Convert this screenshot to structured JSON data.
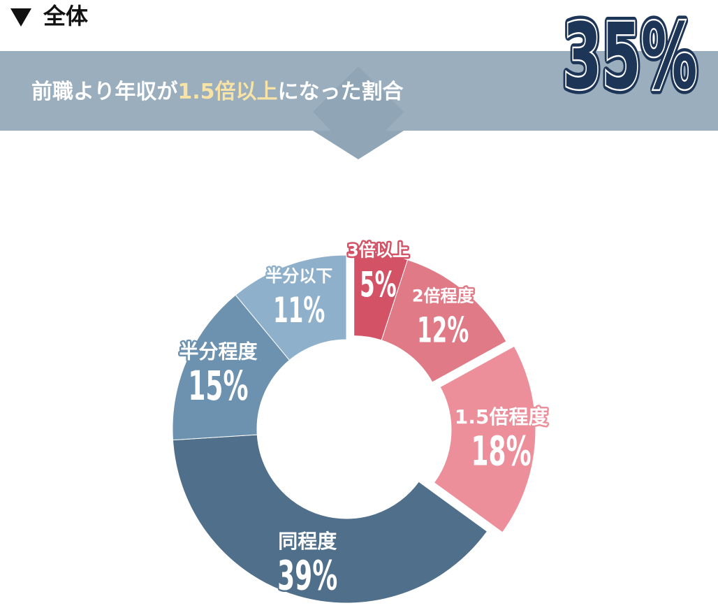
{
  "section": "全体",
  "banner": {
    "parts": [
      "前職より年収が",
      "1.5倍以上",
      "になった割合"
    ],
    "summary": {
      "value": 35,
      "label": "35%"
    }
  },
  "chart_data": {
    "type": "donut",
    "categories": [
      "3倍以上",
      "2倍程度",
      "1.5倍程度",
      "同程度",
      "半分程度",
      "半分以下"
    ],
    "values": [
      5,
      12,
      18,
      39,
      15,
      11
    ],
    "value_labels": [
      "5%",
      "12%",
      "18%",
      "39%",
      "15%",
      "11%"
    ],
    "colors": [
      "#d45265",
      "#e07a87",
      "#ec8f9b",
      "#4f6f8b",
      "#6d92b0",
      "#8fb0cb"
    ]
  }
}
